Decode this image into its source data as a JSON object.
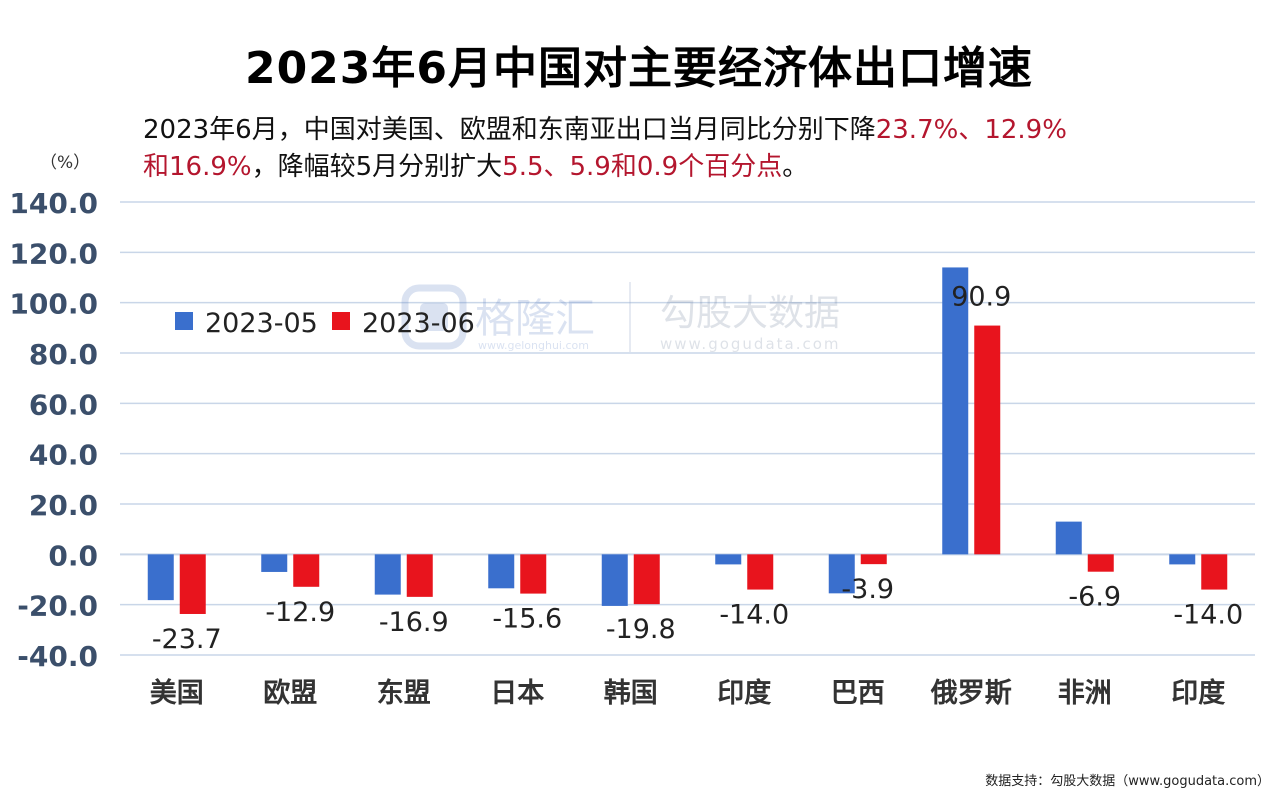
{
  "title": "2023年6月中国对主要经济体出口增速",
  "subtitle": {
    "p1": "2023年6月，中国对美国、欧盟和东南亚出口当月同比分别下降",
    "h1": "23.7%、12.9%",
    "h2": "和16.9%",
    "p2": "，降幅较5月分别扩大",
    "h3": "5.5、5.9和0.9个百分点",
    "p3": "。"
  },
  "unit_label": "（%）",
  "watermark": {
    "brand1": "格隆汇",
    "brand1_url": "www.gelonghui.com",
    "brand2": "勾股大数据",
    "brand2_url": "www.gogudata.com"
  },
  "source": "数据支持：勾股大数据（www.gogudata.com）",
  "colors": {
    "s2023_05": "#3a6fcd",
    "s2023_06": "#e8141d",
    "grid": "#c9d6e8",
    "highlight": "#b4162e"
  },
  "chart_data": {
    "type": "bar",
    "title": "2023年6月中国对主要经济体出口增速",
    "categories": [
      "美国",
      "欧盟",
      "东盟",
      "日本",
      "韩国",
      "印度",
      "巴西",
      "俄罗斯",
      "非洲",
      "印度"
    ],
    "series": [
      {
        "name": "2023-05",
        "values": [
          -18.2,
          -7.0,
          -16.0,
          -13.5,
          -20.5,
          -4.0,
          -15.5,
          114.0,
          13.0,
          -4.0
        ]
      },
      {
        "name": "2023-06",
        "values": [
          -23.7,
          -12.9,
          -16.9,
          -15.6,
          -19.8,
          -14.0,
          -3.9,
          90.9,
          -6.9,
          -14.0
        ]
      }
    ],
    "data_labels": [
      "-23.7",
      "-12.9",
      "-16.9",
      "-15.6",
      "-19.8",
      "-14.0",
      "-3.9",
      "90.9",
      "-6.9",
      "-14.0"
    ],
    "y_ticks": [
      "140.0",
      "120.0",
      "100.0",
      "80.0",
      "60.0",
      "40.0",
      "20.0",
      "0.0",
      "-20.0",
      "-40.0"
    ],
    "ylim": [
      -40,
      140
    ],
    "ylabel": "（%）",
    "grid": true,
    "legend_position": "top-left"
  }
}
